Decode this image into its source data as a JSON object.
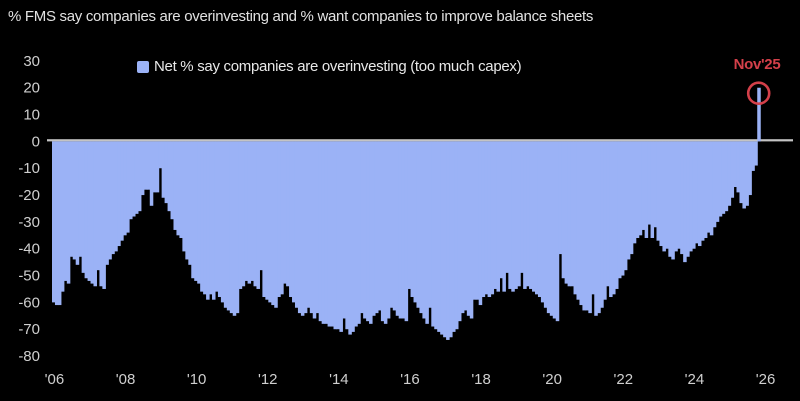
{
  "colors": {
    "background": "#000000",
    "bar": "#9bb2f6",
    "title_text": "#e2e2e2",
    "axis_text": "#cfcfcf",
    "zero_line": "#c4c4c4",
    "accent_red": "#d4404a"
  },
  "chart_data": {
    "type": "bar",
    "title": "% FMS say companies are overinvesting and % want companies to improve balance sheets",
    "legend_label": "Net % say companies are overinvesting (too much capex)",
    "legend_position": "top-center",
    "grid": false,
    "xlabel": "",
    "ylabel": "",
    "ylim": [
      -80,
      30
    ],
    "y_ticks": [
      30,
      20,
      10,
      0,
      -10,
      -20,
      -30,
      -40,
      -50,
      -60,
      -70,
      -80
    ],
    "x_tick_labels": [
      "'06",
      "'08",
      "'10",
      "'12",
      "'14",
      "'16",
      "'18",
      "'20",
      "'22",
      "'24",
      "'26"
    ],
    "x_start_month": "2006-01",
    "x_end_month": "2025-11",
    "annotation": {
      "label": "Nov'25",
      "month": "2025-11",
      "value": 20,
      "style": "red-circle-around-bar-top"
    },
    "series": [
      {
        "name": "Net % say companies are overinvesting (too much capex)",
        "cadence": "monthly",
        "values": [
          -60,
          -61,
          -61,
          -56,
          -52,
          -53,
          -43,
          -44,
          -46,
          -43,
          -49,
          -51,
          -52,
          -53,
          -54,
          -48,
          -54,
          -55,
          -46,
          -44,
          -42,
          -41,
          -39,
          -37,
          -35,
          -34,
          -29,
          -28,
          -27,
          -26,
          -20,
          -18,
          -18,
          -24,
          -19,
          -19,
          -10,
          -21,
          -23,
          -26,
          -29,
          -33,
          -35,
          -36,
          -41,
          -44,
          -46,
          -51,
          -52,
          -53,
          -56,
          -57,
          -59,
          -57,
          -59,
          -56,
          -58,
          -60,
          -62,
          -63,
          -64,
          -65,
          -64,
          -55,
          -54,
          -52,
          -53,
          -52,
          -54,
          -55,
          -48,
          -58,
          -59,
          -60,
          -61,
          -62,
          -58,
          -57,
          -53,
          -54,
          -58,
          -60,
          -62,
          -64,
          -65,
          -64,
          -62,
          -64,
          -66,
          -64,
          -67,
          -68,
          -68,
          -69,
          -69,
          -70,
          -70,
          -71,
          -66,
          -70,
          -72,
          -71,
          -69,
          -68,
          -64,
          -66,
          -67,
          -68,
          -65,
          -64,
          -63,
          -67,
          -68,
          -66,
          -62,
          -63,
          -65,
          -66,
          -66,
          -67,
          -55,
          -58,
          -60,
          -62,
          -64,
          -66,
          -68,
          -62,
          -69,
          -70,
          -71,
          -72,
          -73,
          -74,
          -73,
          -71,
          -70,
          -67,
          -64,
          -63,
          -65,
          -66,
          -59,
          -59,
          -61,
          -58,
          -57,
          -58,
          -57,
          -55,
          -56,
          -51,
          -56,
          -49,
          -55,
          -56,
          -55,
          -54,
          -49,
          -55,
          -54,
          -55,
          -56,
          -57,
          -58,
          -60,
          -62,
          -64,
          -65,
          -66,
          -67,
          -42,
          -51,
          -53,
          -54,
          -54,
          -57,
          -59,
          -61,
          -63,
          -63,
          -64,
          -57,
          -65,
          -64,
          -62,
          -59,
          -54,
          -58,
          -57,
          -55,
          -51,
          -50,
          -48,
          -44,
          -42,
          -38,
          -36,
          -35,
          -33,
          -36,
          -31,
          -36,
          -32,
          -37,
          -39,
          -41,
          -40,
          -43,
          -44,
          -41,
          -40,
          -42,
          -45,
          -43,
          -41,
          -40,
          -38,
          -39,
          -37,
          -36,
          -34,
          -35,
          -32,
          -30,
          -28,
          -27,
          -26,
          -24,
          -21,
          -17,
          -19,
          -23,
          -25,
          -24,
          -20,
          -11,
          -9,
          20
        ]
      }
    ]
  }
}
